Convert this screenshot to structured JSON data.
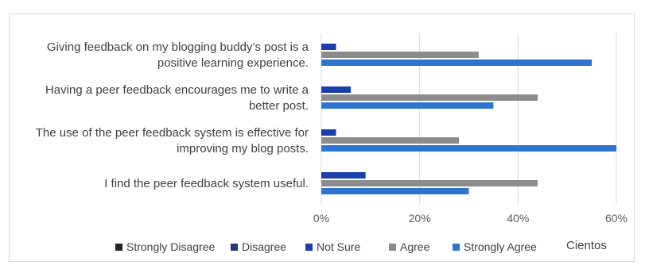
{
  "chart_data": {
    "type": "bar",
    "orientation": "horizontal",
    "categories": [
      [
        "Giving feedback on my blogging buddy’s post is a",
        "positive learning experience."
      ],
      [
        "Having a peer feedback encourages me to write a",
        "better post."
      ],
      [
        "The use of the peer feedback system is effective for",
        "improving my blog posts."
      ],
      [
        "I find the peer feedback system useful."
      ]
    ],
    "series": [
      {
        "name": "Strongly Disagree",
        "color": "#262626",
        "values": [
          0,
          0,
          0,
          0
        ]
      },
      {
        "name": "Disagree",
        "color": "#1f3b7a",
        "values": [
          0,
          0,
          0,
          0
        ]
      },
      {
        "name": "Not Sure",
        "color": "#1a3faa",
        "values": [
          3,
          6,
          3,
          9
        ]
      },
      {
        "name": "Agree",
        "color": "#8c8c8c",
        "values": [
          32,
          44,
          28,
          44
        ]
      },
      {
        "name": "Strongly Agree",
        "color": "#2e75d0",
        "values": [
          55,
          35,
          60,
          30
        ]
      }
    ],
    "xlim": [
      0,
      60
    ],
    "xticks": [
      "0%",
      "20%",
      "40%",
      "60%"
    ],
    "unit_label": "Cientos",
    "grid": true,
    "legend_position": "bottom"
  }
}
